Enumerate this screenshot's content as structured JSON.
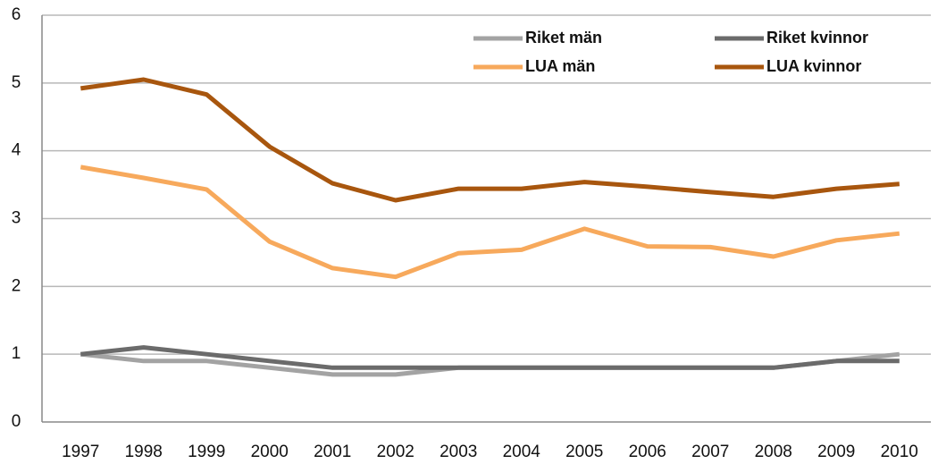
{
  "chart_data": {
    "type": "line",
    "categories": [
      "1997",
      "1998",
      "1999",
      "2000",
      "2001",
      "2002",
      "2003",
      "2004",
      "2005",
      "2006",
      "2007",
      "2008",
      "2009",
      "2010"
    ],
    "series": [
      {
        "name": "Riket män",
        "color": "#a3a3a3",
        "values": [
          1.0,
          0.9,
          0.9,
          0.8,
          0.7,
          0.7,
          0.8,
          0.8,
          0.8,
          0.8,
          0.8,
          0.8,
          0.9,
          1.0
        ]
      },
      {
        "name": "Riket kvinnor",
        "color": "#6b6b6b",
        "values": [
          1.0,
          1.1,
          1.0,
          0.9,
          0.8,
          0.8,
          0.8,
          0.8,
          0.8,
          0.8,
          0.8,
          0.8,
          0.9,
          0.9
        ]
      },
      {
        "name": "LUA män",
        "color": "#f7a95c",
        "values": [
          3.76,
          3.6,
          3.43,
          2.66,
          2.27,
          2.14,
          2.49,
          2.54,
          2.85,
          2.59,
          2.58,
          2.44,
          2.68,
          2.78
        ]
      },
      {
        "name": "LUA kvinnor",
        "color": "#a8560e",
        "values": [
          4.92,
          5.05,
          4.83,
          4.06,
          3.52,
          3.27,
          3.44,
          3.44,
          3.54,
          3.47,
          3.39,
          3.32,
          3.44,
          3.51
        ]
      }
    ],
    "ylim": [
      0,
      6
    ],
    "yticks": [
      0,
      1,
      2,
      3,
      4,
      5,
      6
    ],
    "grid": true,
    "legend": "top-right"
  }
}
